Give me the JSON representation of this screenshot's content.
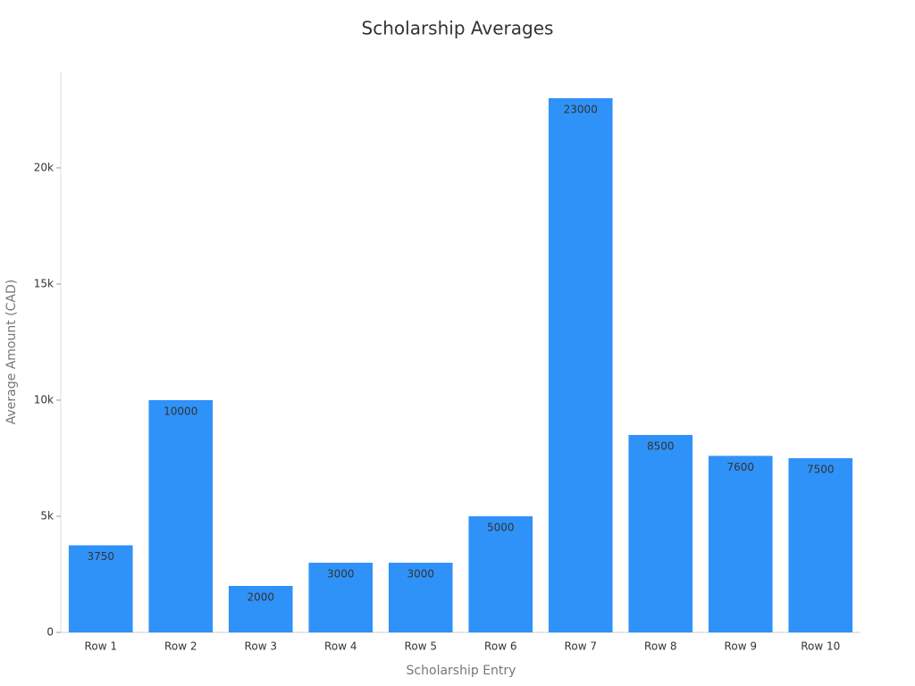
{
  "chart_data": {
    "type": "bar",
    "title": "Scholarship Averages",
    "x_label": "Scholarship Entry",
    "y_label": "Average Amount (CAD)",
    "categories": [
      "Row 1",
      "Row 2",
      "Row 3",
      "Row 4",
      "Row 5",
      "Row 6",
      "Row 7",
      "Row 8",
      "Row 9",
      "Row 10"
    ],
    "values": [
      3750,
      10000,
      2000,
      3000,
      3000,
      5000,
      23000,
      8500,
      7600,
      7500
    ],
    "color": "#2f92f8",
    "ylim": [
      0,
      24150
    ],
    "yticks": [
      0,
      {
        "value": 5000,
        "label": "5k"
      },
      {
        "value": 10000,
        "label": "10k"
      },
      {
        "value": 15000,
        "label": "15k"
      },
      {
        "value": 20000,
        "label": "20k"
      }
    ],
    "grid": false
  }
}
